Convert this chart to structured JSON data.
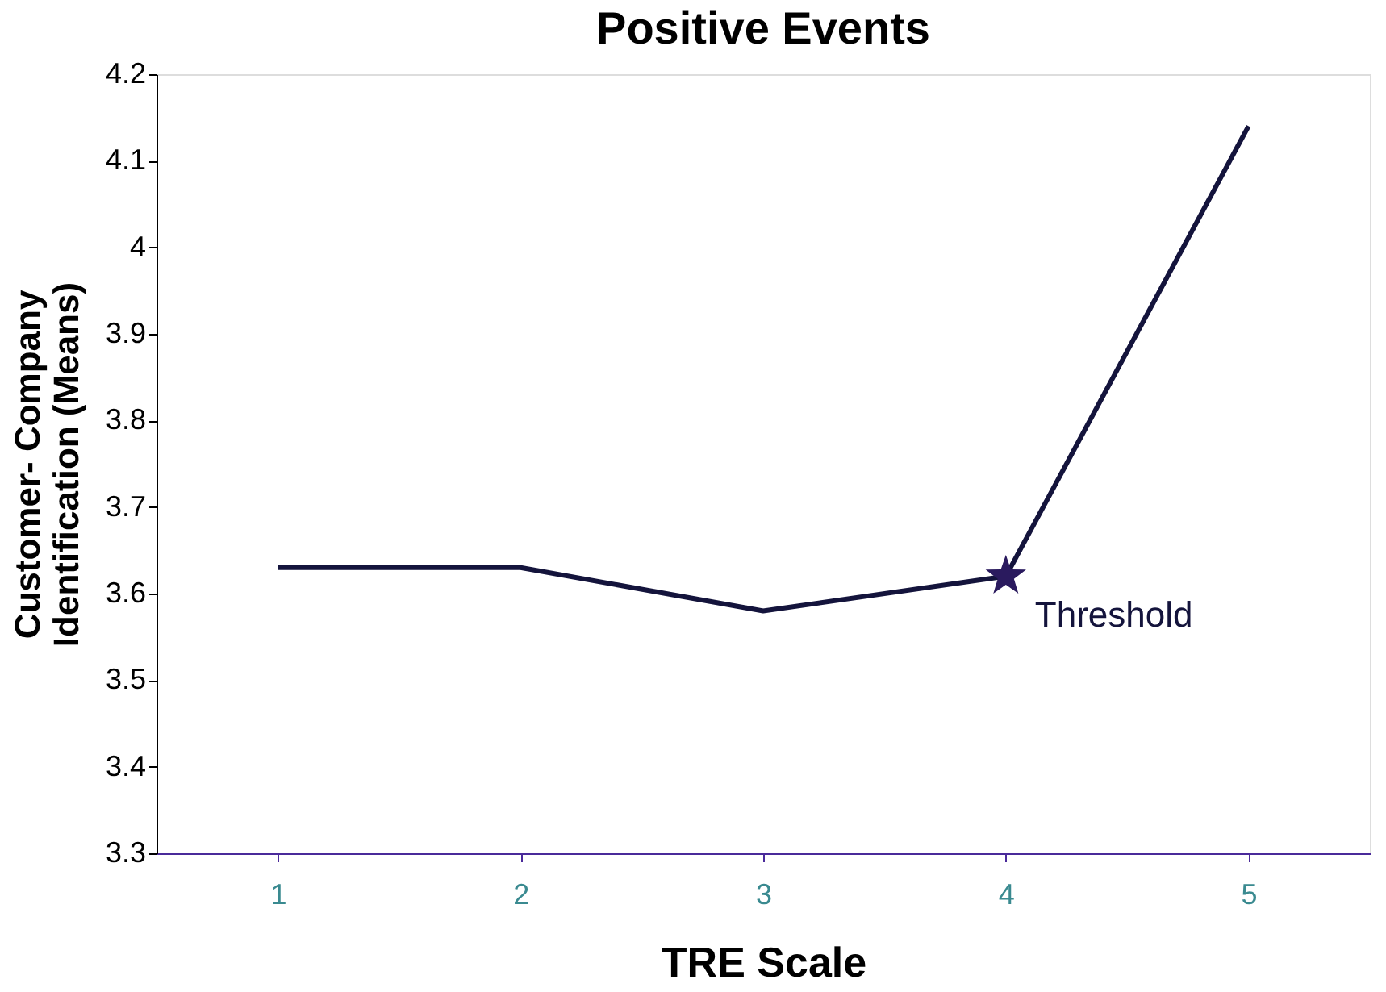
{
  "chart_data": {
    "type": "line",
    "title": "Positive Events",
    "xlabel": "TRE Scale",
    "ylabel": "Customer- Company\nIdentification (Means)",
    "categories": [
      "1",
      "2",
      "3",
      "4",
      "5"
    ],
    "series": [
      {
        "color": "#14143c",
        "values": [
          3.63,
          3.63,
          3.58,
          3.62,
          4.14
        ]
      }
    ],
    "ylim": [
      3.3,
      4.2
    ],
    "yticks": [
      3.3,
      3.4,
      3.5,
      3.6,
      3.7,
      3.8,
      3.9,
      4,
      4.1,
      4.2
    ],
    "annotations": [
      {
        "text": "Threshold",
        "x": "4",
        "y": 3.62
      }
    ],
    "grid": false,
    "marker": "none",
    "line_style": "solid"
  }
}
